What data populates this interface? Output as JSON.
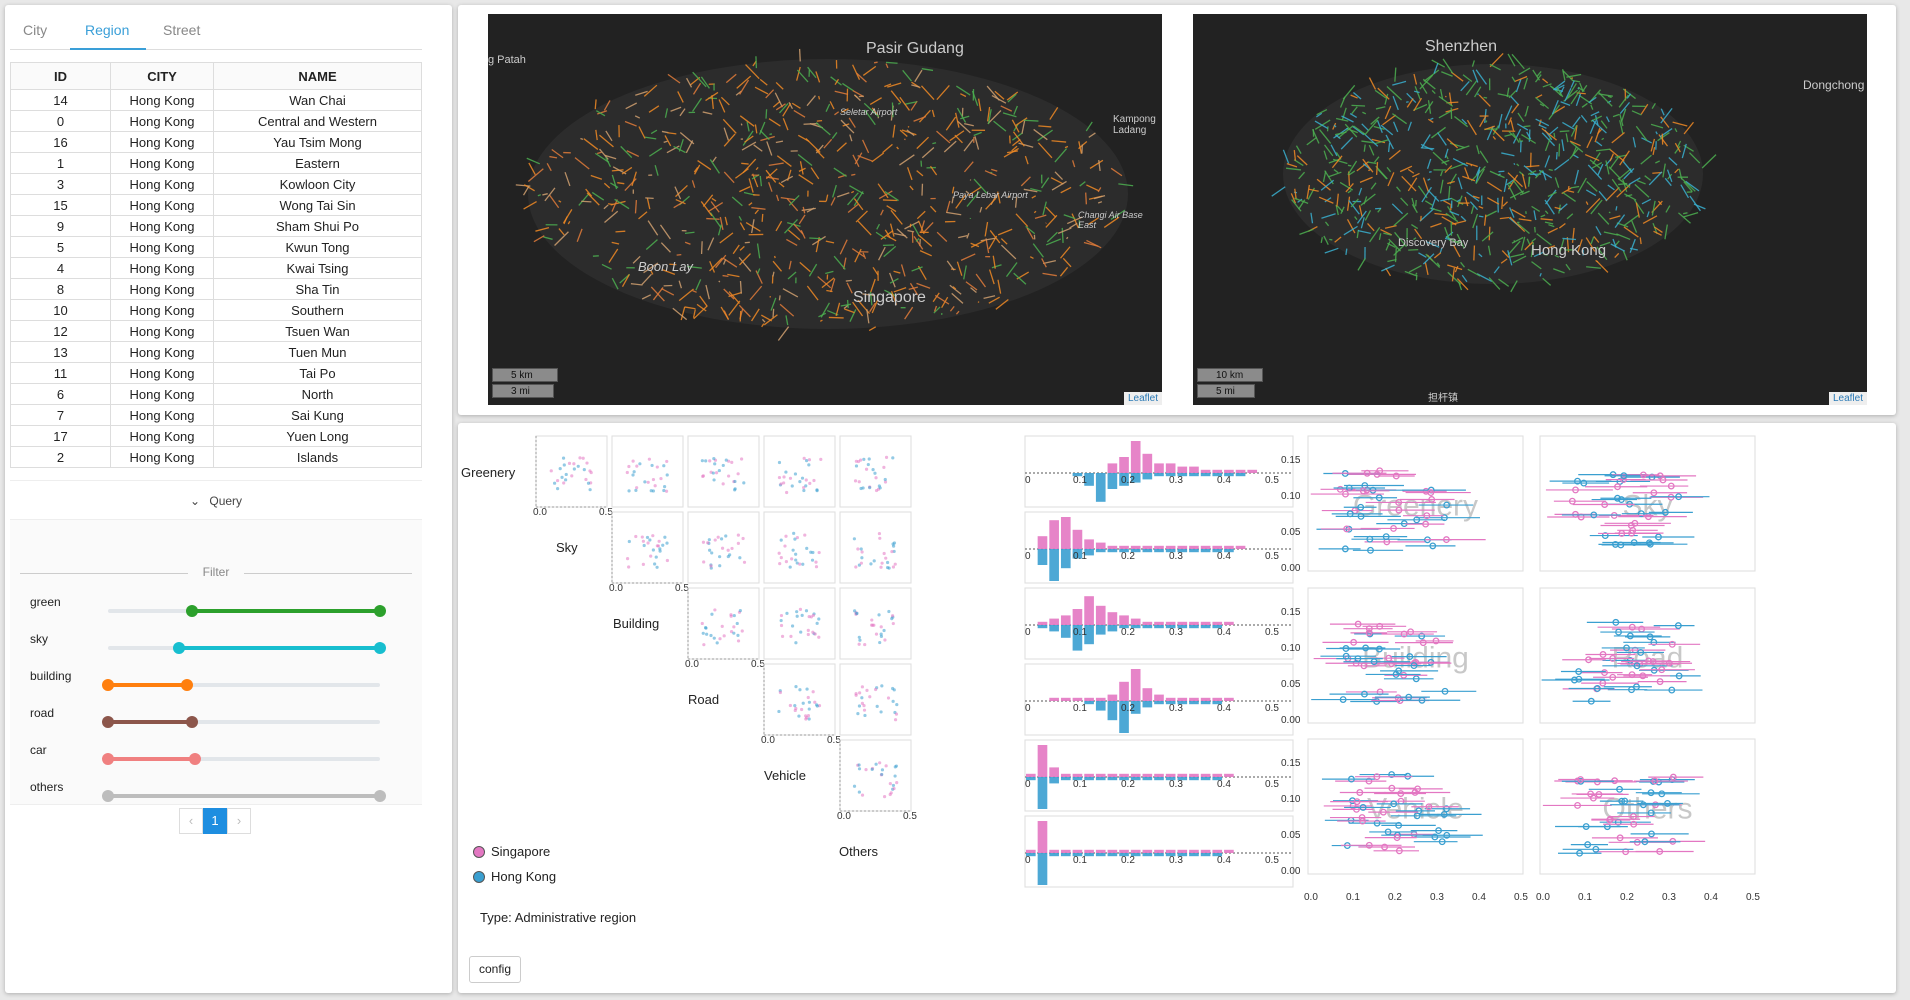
{
  "tabs": [
    {
      "label": "City"
    },
    {
      "label": "Region"
    },
    {
      "label": "Street"
    }
  ],
  "table": {
    "headers": [
      "ID",
      "CITY",
      "NAME"
    ],
    "rows": [
      [
        "14",
        "Hong Kong",
        "Wan Chai"
      ],
      [
        "0",
        "Hong Kong",
        "Central and Western"
      ],
      [
        "16",
        "Hong Kong",
        "Yau Tsim Mong"
      ],
      [
        "1",
        "Hong Kong",
        "Eastern"
      ],
      [
        "3",
        "Hong Kong",
        "Kowloon City"
      ],
      [
        "15",
        "Hong Kong",
        "Wong Tai Sin"
      ],
      [
        "9",
        "Hong Kong",
        "Sham Shui Po"
      ],
      [
        "5",
        "Hong Kong",
        "Kwun Tong"
      ],
      [
        "4",
        "Hong Kong",
        "Kwai Tsing"
      ],
      [
        "8",
        "Hong Kong",
        "Sha Tin"
      ],
      [
        "10",
        "Hong Kong",
        "Southern"
      ],
      [
        "12",
        "Hong Kong",
        "Tsuen Wan"
      ],
      [
        "13",
        "Hong Kong",
        "Tuen Mun"
      ],
      [
        "11",
        "Hong Kong",
        "Tai Po"
      ],
      [
        "6",
        "Hong Kong",
        "North"
      ],
      [
        "7",
        "Hong Kong",
        "Sai Kung"
      ],
      [
        "17",
        "Hong Kong",
        "Yuen Long"
      ],
      [
        "2",
        "Hong Kong",
        "Islands"
      ]
    ]
  },
  "query_label": "Query",
  "filter": {
    "title": "Filter",
    "sliders": [
      {
        "label": "green",
        "color": "#2ca02c",
        "range": [
          0.31,
          1.0
        ]
      },
      {
        "label": "sky",
        "color": "#17becf",
        "range": [
          0.26,
          1.0
        ]
      },
      {
        "label": "building",
        "color": "#ff7f0e",
        "range": [
          0.0,
          0.29
        ]
      },
      {
        "label": "road",
        "color": "#8c564b",
        "range": [
          0.0,
          0.31
        ]
      },
      {
        "label": "car",
        "color": "#f08080",
        "range": [
          0.0,
          0.32
        ]
      },
      {
        "label": "others",
        "color": "#bdbdbd",
        "range": [
          0.0,
          1.0
        ]
      }
    ]
  },
  "pagination": {
    "prev": "‹",
    "page": "1",
    "next": "›"
  },
  "maps": [
    {
      "places": [
        "Pasir Gudang",
        "Kampong Ladang",
        "Seletar Airport",
        "Paya Lebar Airport",
        "Changi Air Base East",
        "Boon Lay",
        "Singapore",
        "g Patah"
      ],
      "scale_km": "5 km",
      "scale_mi": "3 mi",
      "attribution": "Leaflet"
    },
    {
      "places": [
        "Shenzhen",
        "Dongchong",
        "Discovery Bay",
        "Hong Kong"
      ],
      "scale_km": "10 km",
      "scale_mi": "5 mi",
      "attribution": "Leaflet",
      "caption": "担杆镇"
    }
  ],
  "analysis": {
    "variables": [
      "Greenery",
      "Sky",
      "Building",
      "Road",
      "Vehicle",
      "Others"
    ],
    "legend": [
      {
        "label": "Singapore",
        "color": "#e377c2"
      },
      {
        "label": "Hong Kong",
        "color": "#3a9fd0"
      }
    ],
    "type_label": "Type: Administrative region",
    "config_button": "config"
  },
  "chart_data": [
    {
      "type": "bar",
      "title": "",
      "categories": [
        "0.0",
        "0.025",
        "0.05",
        "0.075",
        "0.1",
        "0.125",
        "0.15",
        "0.175",
        "0.2",
        "0.225",
        "0.25",
        "0.275",
        "0.3",
        "0.325",
        "0.35",
        "0.375",
        "0.4",
        "0.425",
        "0.45",
        "0.475",
        "0.5",
        "0.525",
        "0.55"
      ],
      "x_ticks": [
        "0",
        "0.1",
        "0.2",
        "0.3",
        "0.4",
        "0.5"
      ],
      "series": [
        {
          "name": "Singapore",
          "rows": [
            [
              0,
              0,
              0,
              0,
              0,
              0,
              0,
              0.3,
              0.5,
              1,
              0.6,
              0.3,
              0.3,
              0.2,
              0.2,
              0.1,
              0.1,
              0.1,
              0.1,
              0.1,
              0,
              0,
              0
            ],
            [
              0,
              0.4,
              0.9,
              1,
              0.6,
              0.3,
              0.2,
              0.1,
              0.1,
              0.1,
              0.1,
              0.1,
              0.1,
              0.1,
              0.1,
              0.1,
              0.1,
              0.1,
              0.1,
              0,
              0,
              0,
              0
            ],
            [
              0,
              0.1,
              0.2,
              0.3,
              0.5,
              0.9,
              0.6,
              0.4,
              0.3,
              0.2,
              0.1,
              0.1,
              0.1,
              0.1,
              0.1,
              0.1,
              0.1,
              0.1,
              0,
              0,
              0,
              0,
              0
            ],
            [
              0,
              0,
              0.1,
              0.1,
              0.1,
              0.1,
              0.1,
              0.2,
              0.6,
              1,
              0.4,
              0.2,
              0.1,
              0.1,
              0.1,
              0.1,
              0.1,
              0.1,
              0,
              0,
              0,
              0,
              0
            ],
            [
              0.1,
              1,
              0.3,
              0.1,
              0.1,
              0.1,
              0.1,
              0.1,
              0.1,
              0.1,
              0.1,
              0.1,
              0.1,
              0.1,
              0.1,
              0.1,
              0.1,
              0.1,
              0,
              0,
              0,
              0,
              0
            ],
            [
              0.1,
              1,
              0.1,
              0.1,
              0.1,
              0.1,
              0.1,
              0.1,
              0.1,
              0.1,
              0.1,
              0.1,
              0.1,
              0.1,
              0.1,
              0.1,
              0.1,
              0.1,
              0,
              0,
              0,
              0,
              0
            ]
          ]
        },
        {
          "name": "Hong Kong",
          "rows": [
            [
              0,
              0,
              0,
              0,
              0.1,
              0.4,
              0.9,
              0.5,
              0.4,
              0.3,
              0.2,
              0.1,
              0.1,
              0.1,
              0.1,
              0.1,
              0.1,
              0.1,
              0.1,
              0,
              0,
              0,
              0
            ],
            [
              0,
              0.5,
              1,
              0.6,
              0.3,
              0.2,
              0.1,
              0.1,
              0.1,
              0.1,
              0.1,
              0.1,
              0.1,
              0.1,
              0.1,
              0.1,
              0.1,
              0.1,
              0,
              0,
              0,
              0,
              0
            ],
            [
              0,
              0.1,
              0.2,
              0.4,
              0.8,
              0.6,
              0.3,
              0.2,
              0.1,
              0.1,
              0.1,
              0.1,
              0.1,
              0.1,
              0.1,
              0.1,
              0.1,
              0,
              0,
              0,
              0,
              0,
              0
            ],
            [
              0,
              0,
              0,
              0,
              0,
              0.1,
              0.3,
              0.6,
              1,
              0.4,
              0.2,
              0.1,
              0.1,
              0.1,
              0.1,
              0.1,
              0.1,
              0,
              0,
              0,
              0,
              0,
              0
            ],
            [
              0.1,
              1,
              0.2,
              0.1,
              0.1,
              0.1,
              0.1,
              0.1,
              0.1,
              0.1,
              0.1,
              0.1,
              0.1,
              0.1,
              0.1,
              0.1,
              0.1,
              0,
              0,
              0,
              0,
              0,
              0
            ],
            [
              0.1,
              1,
              0.1,
              0.1,
              0.1,
              0.1,
              0.1,
              0.1,
              0.1,
              0.1,
              0.1,
              0.1,
              0.1,
              0.1,
              0.1,
              0.1,
              0.1,
              0,
              0,
              0,
              0,
              0,
              0
            ]
          ]
        }
      ]
    },
    {
      "type": "scatter",
      "title": "",
      "xlim": [
        0,
        0.5
      ],
      "ylim": [
        0,
        0.18
      ],
      "x_ticks": [
        "0.0",
        "0.1",
        "0.2",
        "0.3",
        "0.4",
        "0.5"
      ],
      "y_ticks": [
        "0.00",
        "0.05",
        "0.10",
        "0.15"
      ],
      "panels": [
        "Greenery",
        "Sky",
        "Building",
        "Road",
        "Vehicle",
        "Others"
      ]
    }
  ],
  "splom_ticks": {
    "min": "0.0",
    "max": "0.5"
  }
}
